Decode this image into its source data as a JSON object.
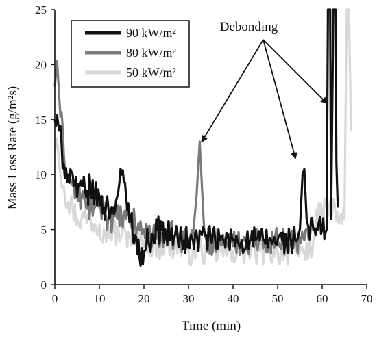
{
  "chart_data": {
    "type": "line",
    "xlabel": "Time (min)",
    "ylabel": "Mass Loss Rate (g/m²s)",
    "xlim": [
      0,
      70
    ],
    "ylim": [
      0,
      25
    ],
    "xticks": [
      "0",
      "10",
      "20",
      "30",
      "40",
      "50",
      "60",
      "70"
    ],
    "yticks": [
      "0",
      "5",
      "10",
      "15",
      "20",
      "25"
    ],
    "grid": false,
    "legend": "top-left",
    "annotation": {
      "text": "Debonding",
      "targets": [
        [
          33,
          13
        ],
        [
          54,
          11.5
        ],
        [
          61,
          16.5
        ]
      ]
    },
    "series": [
      {
        "name": "90 kW/m²",
        "color": "#111111",
        "points": [
          [
            0,
            15
          ],
          [
            1,
            14
          ],
          [
            2,
            11
          ],
          [
            3,
            10
          ],
          [
            4,
            10
          ],
          [
            5,
            8
          ],
          [
            6,
            9
          ],
          [
            7,
            8
          ],
          [
            8,
            9
          ],
          [
            9,
            8
          ],
          [
            10,
            8
          ],
          [
            11,
            7
          ],
          [
            12,
            7
          ],
          [
            13,
            7
          ],
          [
            14,
            8
          ],
          [
            15,
            10
          ],
          [
            16,
            8
          ],
          [
            17,
            6
          ],
          [
            18,
            4.5
          ],
          [
            19,
            2.5
          ],
          [
            20,
            3
          ],
          [
            21,
            4
          ],
          [
            22,
            4.5
          ],
          [
            23,
            5
          ],
          [
            24,
            5
          ],
          [
            25,
            4.5
          ],
          [
            26,
            4.5
          ],
          [
            27,
            4.5
          ],
          [
            28,
            4
          ],
          [
            29,
            4
          ],
          [
            30,
            4
          ],
          [
            31,
            4
          ],
          [
            32,
            4
          ],
          [
            33,
            4.5
          ],
          [
            34,
            4.5
          ],
          [
            35,
            4
          ],
          [
            36,
            4
          ],
          [
            37,
            4
          ],
          [
            38,
            4
          ],
          [
            39,
            4
          ],
          [
            40,
            4
          ],
          [
            41,
            4
          ],
          [
            42,
            4
          ],
          [
            43,
            4
          ],
          [
            44,
            4
          ],
          [
            45,
            4
          ],
          [
            46,
            4
          ],
          [
            47,
            4
          ],
          [
            48,
            4
          ],
          [
            49,
            4
          ],
          [
            50,
            4
          ],
          [
            51,
            4
          ],
          [
            52,
            4
          ],
          [
            53,
            4
          ],
          [
            54,
            4
          ],
          [
            55,
            5
          ],
          [
            55.6,
            10
          ],
          [
            56,
            10.5
          ],
          [
            56.5,
            6
          ],
          [
            57,
            5
          ],
          [
            58,
            5
          ],
          [
            59,
            5
          ],
          [
            60,
            5
          ],
          [
            61,
            5
          ],
          [
            61.3,
            25
          ],
          [
            61.8,
            25
          ],
          [
            62,
            6
          ],
          [
            62.5,
            25
          ],
          [
            63,
            25
          ],
          [
            63.2,
            11
          ],
          [
            63.5,
            7
          ]
        ]
      },
      {
        "name": "80 kW/m²",
        "color": "#7a7a7a",
        "points": [
          [
            0,
            18
          ],
          [
            0.5,
            20.3
          ],
          [
            1,
            17
          ],
          [
            2,
            12
          ],
          [
            3,
            10
          ],
          [
            4,
            9
          ],
          [
            5,
            8
          ],
          [
            6,
            8
          ],
          [
            7,
            7
          ],
          [
            8,
            7
          ],
          [
            9,
            7
          ],
          [
            10,
            7
          ],
          [
            11,
            7
          ],
          [
            12,
            6
          ],
          [
            13,
            6
          ],
          [
            14,
            6
          ],
          [
            15,
            6
          ],
          [
            16,
            6
          ],
          [
            17,
            6
          ],
          [
            18,
            5.5
          ],
          [
            19,
            5
          ],
          [
            20,
            5
          ],
          [
            21,
            5
          ],
          [
            22,
            4.5
          ],
          [
            23,
            4.5
          ],
          [
            24,
            4.5
          ],
          [
            25,
            4.5
          ],
          [
            26,
            4.5
          ],
          [
            27,
            4.5
          ],
          [
            28,
            4
          ],
          [
            29,
            4
          ],
          [
            30,
            4
          ],
          [
            31,
            4.5
          ],
          [
            31.8,
            8
          ],
          [
            32.5,
            13
          ],
          [
            33,
            9
          ],
          [
            33.5,
            5
          ],
          [
            34,
            4
          ],
          [
            35,
            4
          ],
          [
            36,
            4
          ],
          [
            37,
            4
          ],
          [
            38,
            4
          ],
          [
            39,
            4
          ],
          [
            40,
            3.5
          ],
          [
            41,
            4
          ],
          [
            42,
            4
          ],
          [
            43,
            4
          ],
          [
            44,
            4
          ],
          [
            45,
            4
          ],
          [
            46,
            4
          ],
          [
            47,
            4
          ],
          [
            48,
            4
          ],
          [
            49,
            4
          ],
          [
            50,
            4
          ],
          [
            51,
            4
          ],
          [
            52,
            4
          ],
          [
            53,
            4
          ],
          [
            54,
            4
          ],
          [
            55,
            4
          ],
          [
            56,
            4
          ],
          [
            57,
            4
          ]
        ]
      },
      {
        "name": "50 kW/m²",
        "color": "#d8d8d8",
        "points": [
          [
            0,
            12
          ],
          [
            0.5,
            13.3
          ],
          [
            1,
            11
          ],
          [
            2,
            9
          ],
          [
            3,
            7.5
          ],
          [
            4,
            7
          ],
          [
            5,
            6
          ],
          [
            6,
            6
          ],
          [
            7,
            6
          ],
          [
            8,
            6
          ],
          [
            9,
            5.5
          ],
          [
            10,
            5.5
          ],
          [
            11,
            5
          ],
          [
            12,
            5
          ],
          [
            13,
            5
          ],
          [
            14,
            4.5
          ],
          [
            15,
            4.5
          ],
          [
            16,
            4.5
          ],
          [
            17,
            4.5
          ],
          [
            18,
            4
          ],
          [
            19,
            4
          ],
          [
            20,
            4
          ],
          [
            21,
            4
          ],
          [
            22,
            3.5
          ],
          [
            23,
            3.5
          ],
          [
            24,
            3.5
          ],
          [
            25,
            3.5
          ],
          [
            26,
            3.5
          ],
          [
            27,
            3.5
          ],
          [
            28,
            3.5
          ],
          [
            29,
            3.5
          ],
          [
            30,
            3
          ],
          [
            31,
            3
          ],
          [
            32,
            3.5
          ],
          [
            33,
            3
          ],
          [
            34,
            3
          ],
          [
            35,
            3
          ],
          [
            36,
            3
          ],
          [
            37,
            3
          ],
          [
            38,
            3
          ],
          [
            39,
            3
          ],
          [
            40,
            3
          ],
          [
            41,
            3
          ],
          [
            42,
            3
          ],
          [
            43,
            3
          ],
          [
            44,
            3
          ],
          [
            45,
            3
          ],
          [
            46,
            3
          ],
          [
            47,
            3
          ],
          [
            48,
            3
          ],
          [
            49,
            3
          ],
          [
            50,
            3
          ],
          [
            51,
            3
          ],
          [
            52,
            3
          ],
          [
            53,
            3
          ],
          [
            54,
            3
          ],
          [
            55,
            3
          ],
          [
            56,
            3
          ],
          [
            57,
            3
          ],
          [
            58,
            4
          ],
          [
            59,
            6
          ],
          [
            60,
            6.5
          ],
          [
            61,
            7
          ],
          [
            62,
            7
          ],
          [
            63,
            6.5
          ],
          [
            64,
            6
          ],
          [
            65,
            6
          ],
          [
            65.5,
            25
          ],
          [
            66,
            25
          ],
          [
            66.5,
            14
          ]
        ]
      }
    ]
  }
}
